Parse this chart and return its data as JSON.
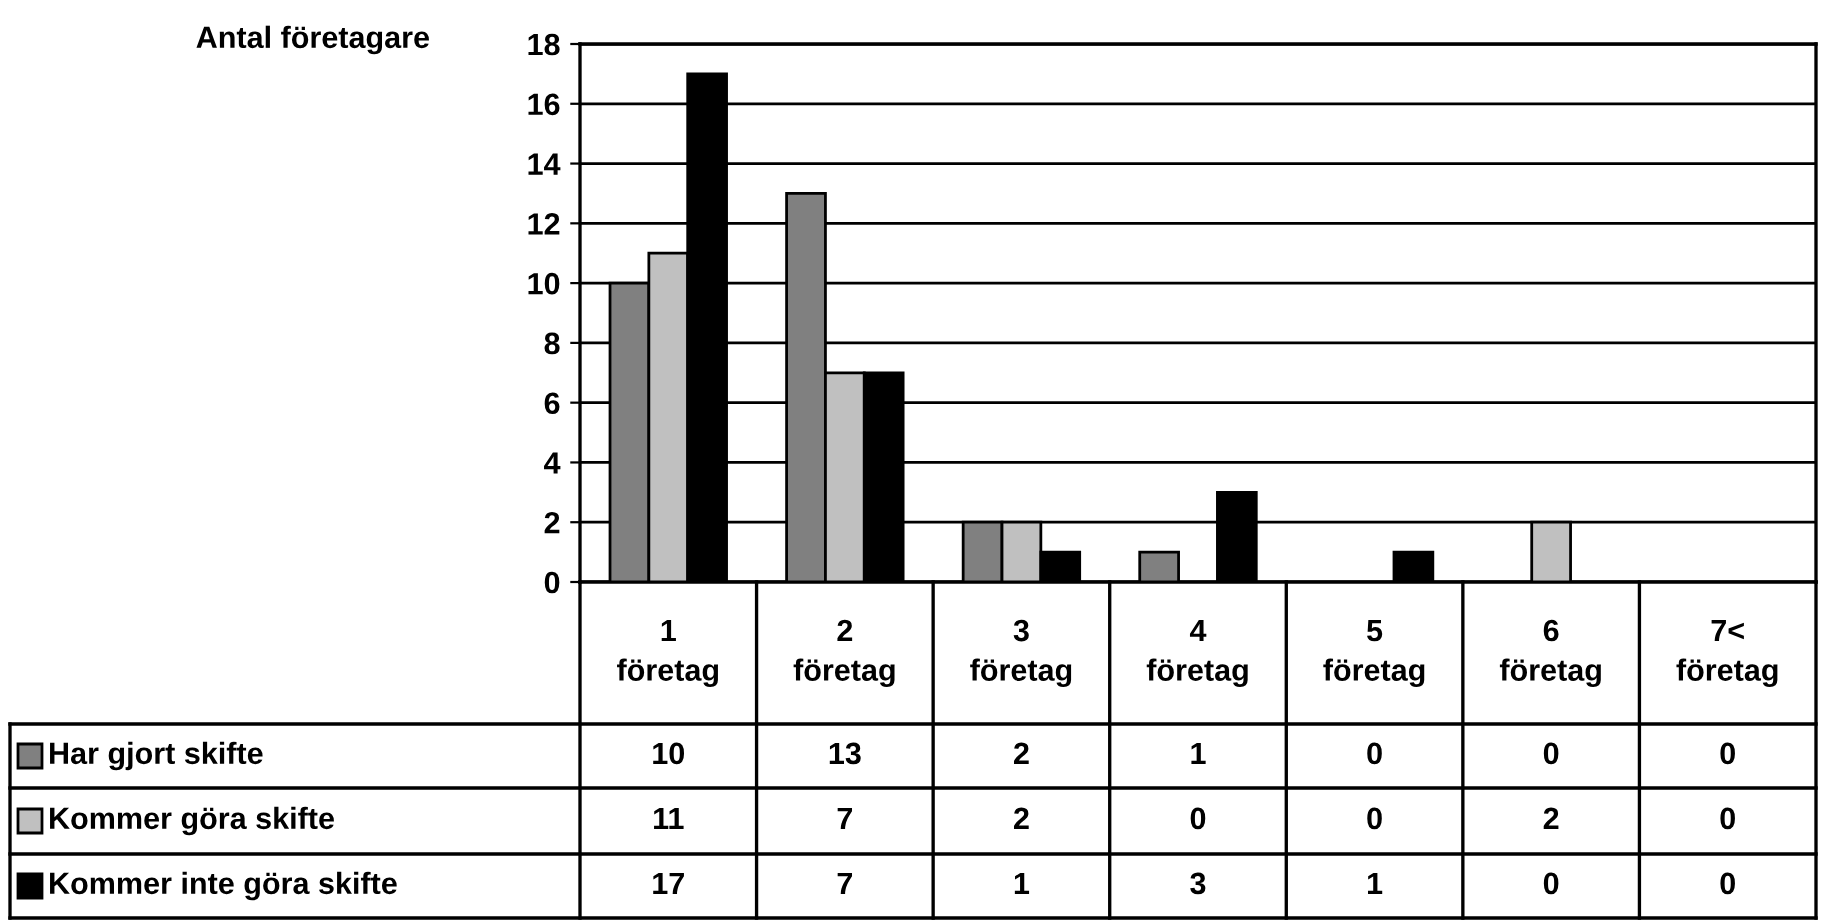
{
  "chart_data": {
    "type": "bar",
    "ylabel": "Antal företagare",
    "categories": [
      "1\nföretag",
      "2\nföretag",
      "3\nföretag",
      "4\nföretag",
      "5\nföretag",
      "6\nföretag",
      "7<\nföretag"
    ],
    "series": [
      {
        "name": "Har gjort skifte",
        "color": "#808080",
        "values": [
          10,
          13,
          2,
          1,
          0,
          0,
          0
        ]
      },
      {
        "name": "Kommer göra skifte",
        "color": "#c0c0c0",
        "values": [
          11,
          7,
          2,
          0,
          0,
          2,
          0
        ]
      },
      {
        "name": "Kommer inte göra skifte",
        "color": "#000000",
        "values": [
          17,
          7,
          1,
          3,
          1,
          0,
          0
        ]
      }
    ],
    "ylim": [
      0,
      18
    ],
    "yticks": [
      0,
      2,
      4,
      6,
      8,
      10,
      12,
      14,
      16,
      18
    ],
    "grid": "y",
    "legend": "bottom",
    "data_labels": true
  }
}
